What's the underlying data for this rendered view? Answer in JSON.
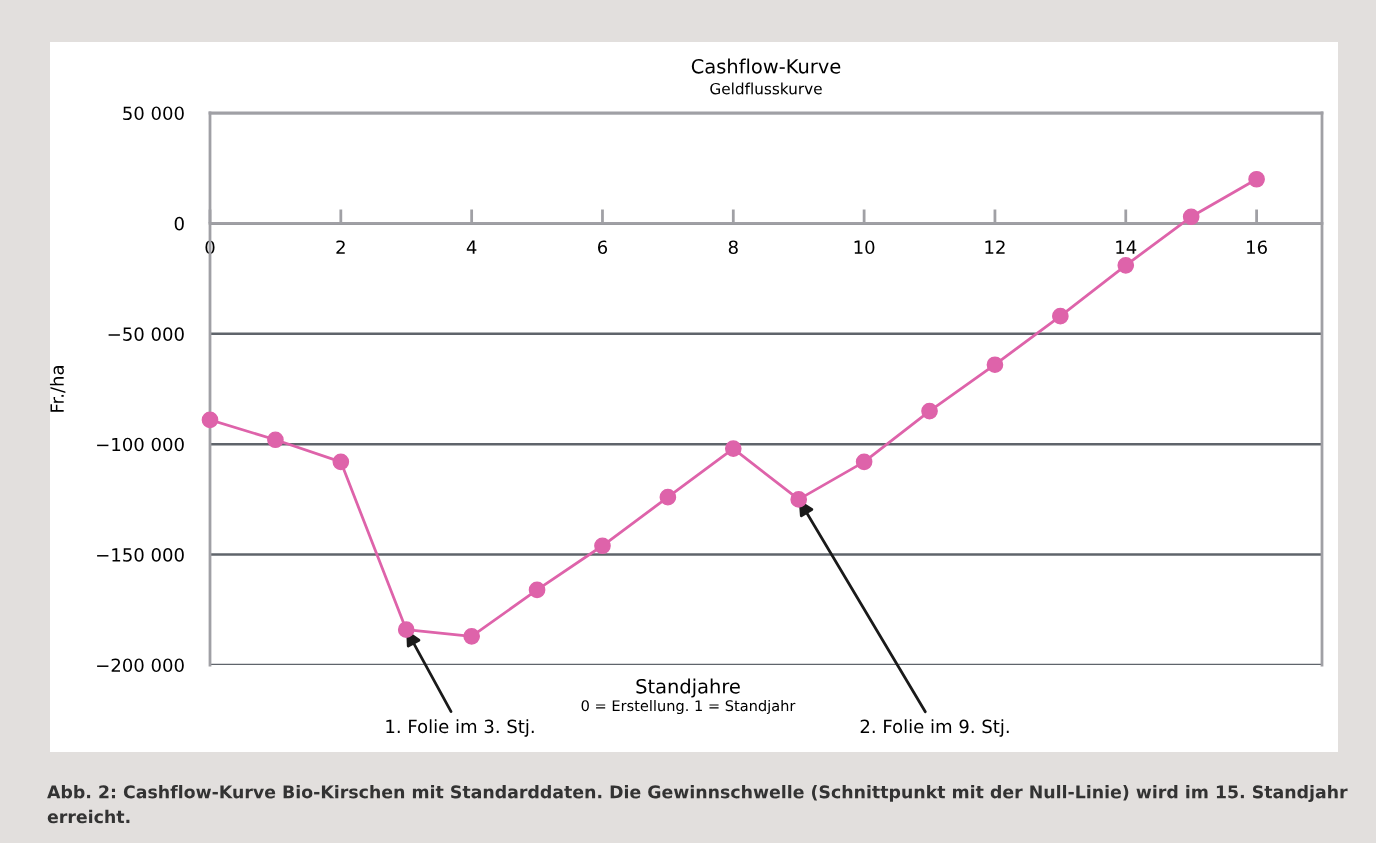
{
  "chart_data": {
    "type": "line",
    "title": "Cashflow-Kurve",
    "subtitle": "Geldflusskurve",
    "xlabel": "Standjahre",
    "ylabel": "Fr./ha",
    "x": [
      0,
      1,
      2,
      3,
      4,
      5,
      6,
      7,
      8,
      9,
      10,
      11,
      12,
      13,
      14,
      15,
      16
    ],
    "series": [
      {
        "color": "#de63aa",
        "values": [
          -89000,
          -98000,
          -108000,
          -184000,
          -187000,
          -166000,
          -146000,
          -124000,
          -102000,
          -125000,
          -108000,
          -85000,
          -64000,
          -42000,
          -19000,
          3000,
          20000
        ]
      }
    ],
    "xlim": [
      0,
      17
    ],
    "xticks": [
      0,
      2,
      4,
      6,
      8,
      10,
      12,
      14,
      16
    ],
    "ylim": [
      -200000,
      50000
    ],
    "yticks": [
      {
        "value": -200000,
        "label": "−200 000"
      },
      {
        "value": -150000,
        "label": "−150 000"
      },
      {
        "value": -100000,
        "label": "−100 000"
      },
      {
        "value": -50000,
        "label": "−50 000"
      },
      0,
      {
        "value": 50000,
        "label": "50 000"
      }
    ],
    "grid": "y",
    "marker": "circle",
    "line_style": "solid",
    "annotations": [
      "0 = Erstellung. 1 = Standjahr",
      {
        "text": "1. Folie im 3. Stj.",
        "x": 3,
        "y": -184000
      },
      {
        "text": "2. Folie im 9. Stj.",
        "x": 9,
        "y": -125000
      },
      "Abb. 2: Cashflow-Kurve Bio-Kirschen mit Standarddaten. Die Gewinnschwelle (Schnittpunkt mit der Null-Linie) wird im 15. Standjahr erreicht."
    ]
  }
}
